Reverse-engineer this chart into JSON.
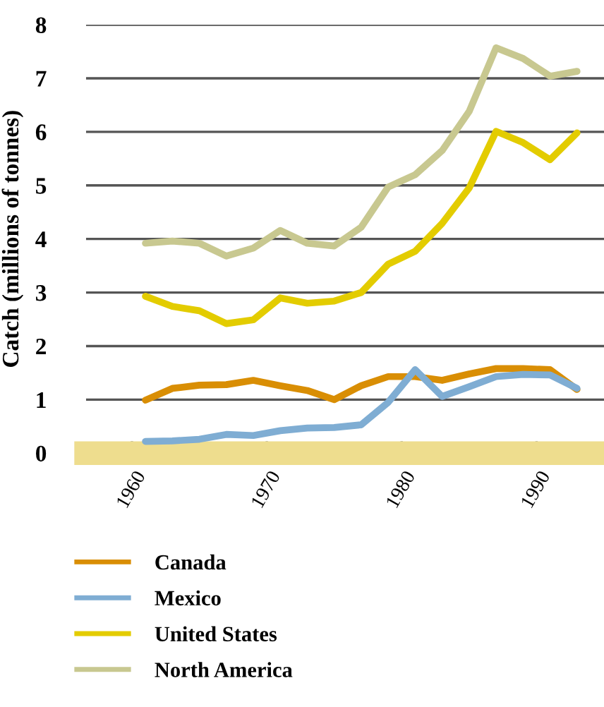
{
  "chart_data": {
    "type": "line",
    "ylabel": "Catch (millions of tonnes)",
    "x": [
      1961,
      1963,
      1965,
      1967,
      1969,
      1971,
      1973,
      1975,
      1977,
      1979,
      1981,
      1983,
      1985,
      1987,
      1989,
      1991,
      1993
    ],
    "series": [
      {
        "name": "Canada",
        "color": "#d98e04",
        "values": [
          0.99,
          1.21,
          1.27,
          1.28,
          1.36,
          1.26,
          1.17,
          1.0,
          1.26,
          1.43,
          1.43,
          1.36,
          1.48,
          1.58,
          1.58,
          1.56,
          1.19
        ]
      },
      {
        "name": "Mexico",
        "color": "#7fadd3",
        "values": [
          0.22,
          0.23,
          0.26,
          0.35,
          0.33,
          0.42,
          0.47,
          0.48,
          0.53,
          0.95,
          1.56,
          1.06,
          1.24,
          1.43,
          1.47,
          1.46,
          1.21
        ]
      },
      {
        "name": "United States",
        "color": "#e3cc00",
        "values": [
          2.93,
          2.74,
          2.66,
          2.42,
          2.49,
          2.9,
          2.8,
          2.84,
          3.0,
          3.53,
          3.77,
          4.29,
          4.95,
          6.01,
          5.8,
          5.48,
          5.98
        ]
      },
      {
        "name": "North America",
        "color": "#c8c890",
        "values": [
          3.92,
          3.96,
          3.92,
          3.68,
          3.83,
          4.16,
          3.92,
          3.87,
          4.22,
          4.97,
          5.2,
          5.65,
          6.38,
          7.57,
          7.37,
          7.04,
          7.13
        ]
      }
    ],
    "xlim": [
      1956.6,
      1995
    ],
    "xticks": [
      1960,
      1970,
      1980,
      1990
    ],
    "ylim": [
      0,
      8
    ],
    "yticks": [
      0,
      1,
      2,
      3,
      4,
      5,
      6,
      7,
      8
    ],
    "grid": "y",
    "legend": "bottom",
    "marker": "none",
    "line_style": "solid"
  }
}
